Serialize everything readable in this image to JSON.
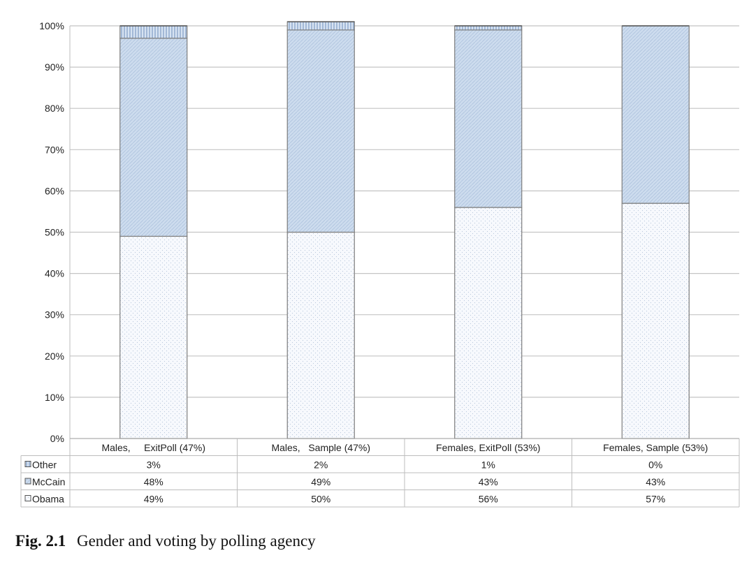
{
  "chart_data": {
    "type": "bar",
    "stacked": true,
    "categories": [
      "Males,     ExitPoll (47%)",
      "Males,   Sample (47%)",
      "Females, ExitPoll (53%)",
      "Females, Sample (53%)"
    ],
    "series": [
      {
        "name": "Obama",
        "values": [
          49,
          50,
          56,
          57
        ],
        "labels": [
          "49%",
          "50%",
          "56%",
          "57%"
        ],
        "color": "#f4f7fc"
      },
      {
        "name": "McCain",
        "values": [
          48,
          49,
          43,
          43
        ],
        "labels": [
          "48%",
          "49%",
          "43%",
          "43%"
        ],
        "color": "#c6d6ea"
      },
      {
        "name": "Other",
        "values": [
          3,
          2,
          1,
          0
        ],
        "labels": [
          "3%",
          "2%",
          "1%",
          "0%"
        ],
        "color": "#a9c1e2"
      }
    ],
    "legend_order": [
      "Other",
      "McCain",
      "Obama"
    ],
    "ylim": [
      0,
      100
    ],
    "yticks": [
      "0%",
      "10%",
      "20%",
      "30%",
      "40%",
      "50%",
      "60%",
      "70%",
      "80%",
      "90%",
      "100%"
    ],
    "grid": true,
    "legend": "data-table-below",
    "xlabel": "",
    "ylabel": ""
  },
  "caption": {
    "number": "Fig. 2.1",
    "text": "Gender and voting by polling agency"
  }
}
